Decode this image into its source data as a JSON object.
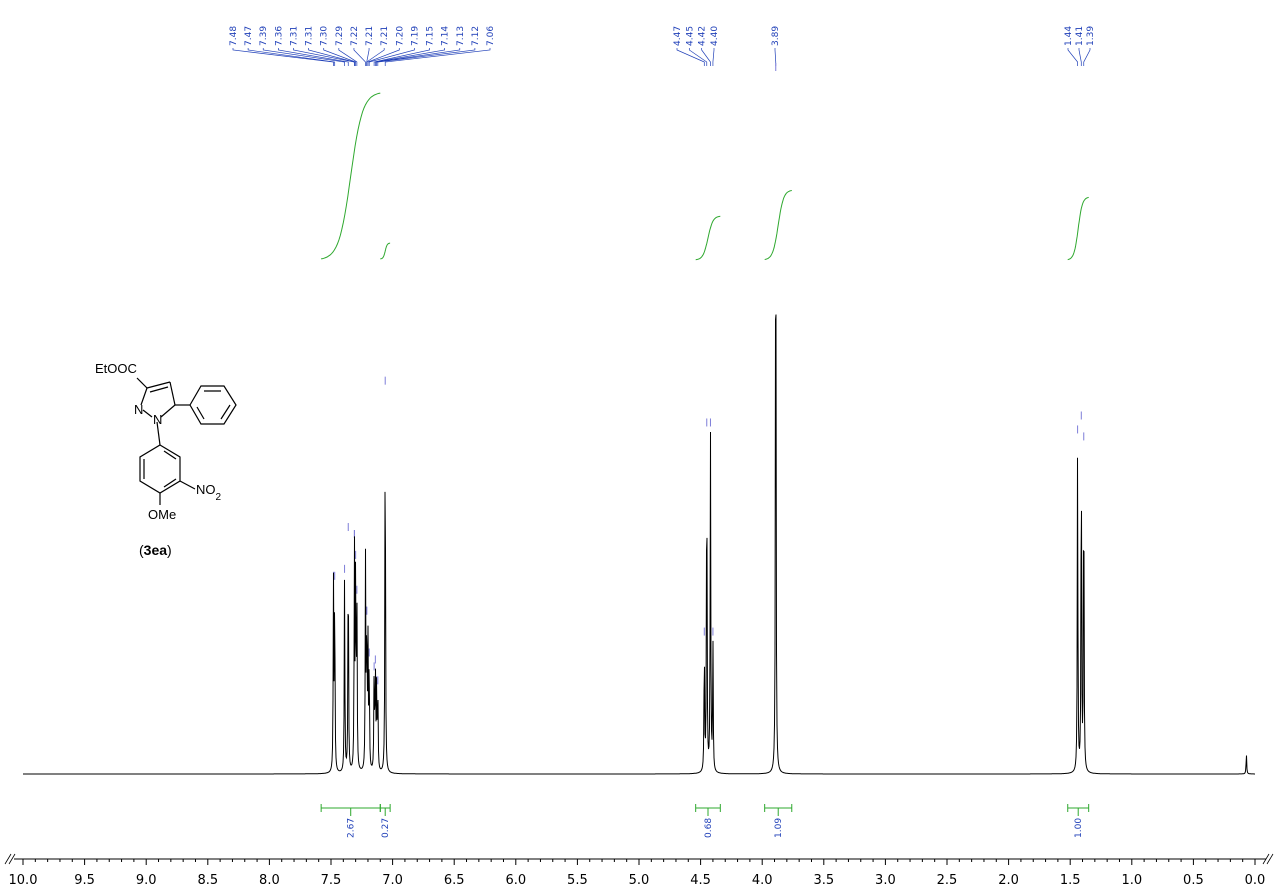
{
  "chart_data": {
    "type": "line",
    "title": "",
    "xlabel": "",
    "ylabel": "",
    "xlim": [
      10.0,
      0.0
    ],
    "x_reversed": true,
    "x_ticks": [
      "10.0",
      "9.5",
      "9.0",
      "8.5",
      "8.0",
      "7.5",
      "7.0",
      "6.5",
      "6.0",
      "5.5",
      "5.0",
      "4.5",
      "4.0",
      "3.5",
      "3.0",
      "2.5",
      "2.0",
      "1.5",
      "1.0",
      "0.5",
      "0.0"
    ],
    "grid": false,
    "peak_labels": [
      {
        "group": "aromatic",
        "values": [
          "7.48",
          "7.47",
          "7.39",
          "7.36",
          "7.31",
          "7.31",
          "7.30",
          "7.29",
          "7.22",
          "7.21",
          "7.21",
          "7.20",
          "7.19",
          "7.15",
          "7.14",
          "7.13",
          "7.12",
          "7.06"
        ]
      },
      {
        "group": "quartet",
        "values": [
          "4.47",
          "4.45",
          "4.42",
          "4.40"
        ]
      },
      {
        "group": "singlet",
        "values": [
          "3.89"
        ]
      },
      {
        "group": "triplet",
        "values": [
          "1.44",
          "1.41",
          "1.39"
        ]
      }
    ],
    "peaks": [
      {
        "ppm": 7.48,
        "height": 0.27
      },
      {
        "ppm": 7.47,
        "height": 0.27
      },
      {
        "ppm": 7.39,
        "height": 0.28
      },
      {
        "ppm": 7.36,
        "height": 0.34
      },
      {
        "ppm": 7.31,
        "height": 0.33
      },
      {
        "ppm": 7.3,
        "height": 0.3
      },
      {
        "ppm": 7.29,
        "height": 0.25
      },
      {
        "ppm": 7.22,
        "height": 0.3
      },
      {
        "ppm": 7.21,
        "height": 0.22
      },
      {
        "ppm": 7.2,
        "height": 0.18
      },
      {
        "ppm": 7.19,
        "height": 0.16
      },
      {
        "ppm": 7.15,
        "height": 0.14
      },
      {
        "ppm": 7.14,
        "height": 0.15
      },
      {
        "ppm": 7.13,
        "height": 0.12
      },
      {
        "ppm": 7.12,
        "height": 0.12
      },
      {
        "ppm": 7.06,
        "height": 0.55
      },
      {
        "ppm": 4.47,
        "height": 0.19
      },
      {
        "ppm": 4.45,
        "height": 0.49
      },
      {
        "ppm": 4.42,
        "height": 0.49
      },
      {
        "ppm": 4.4,
        "height": 0.19
      },
      {
        "ppm": 3.89,
        "height": 1.0
      },
      {
        "ppm": 1.44,
        "height": 0.48
      },
      {
        "ppm": 1.41,
        "height": 0.5
      },
      {
        "ppm": 1.39,
        "height": 0.47
      },
      {
        "ppm": 0.07,
        "height": 0.03
      }
    ],
    "integrals": [
      {
        "from": 7.58,
        "to": 7.1,
        "value": "2.67"
      },
      {
        "from": 7.1,
        "to": 7.02,
        "value": "0.27"
      },
      {
        "from": 4.54,
        "to": 4.34,
        "value": "0.68"
      },
      {
        "from": 3.98,
        "to": 3.76,
        "value": "1.09"
      },
      {
        "from": 1.52,
        "to": 1.35,
        "value": "1.00"
      }
    ]
  },
  "structure": {
    "substituent_ester": "EtOOC",
    "atom_n1": "N",
    "atom_n2": "N",
    "nitro": "NO",
    "nitro_subscript": "2",
    "methoxy": "OMe",
    "compound_label_open": "(",
    "compound_label": "3ea",
    "compound_label_close": ")"
  },
  "colors": {
    "spectrum": "#000000",
    "peak_labels": "#1f3fb8",
    "integral": "#2ea82e"
  }
}
